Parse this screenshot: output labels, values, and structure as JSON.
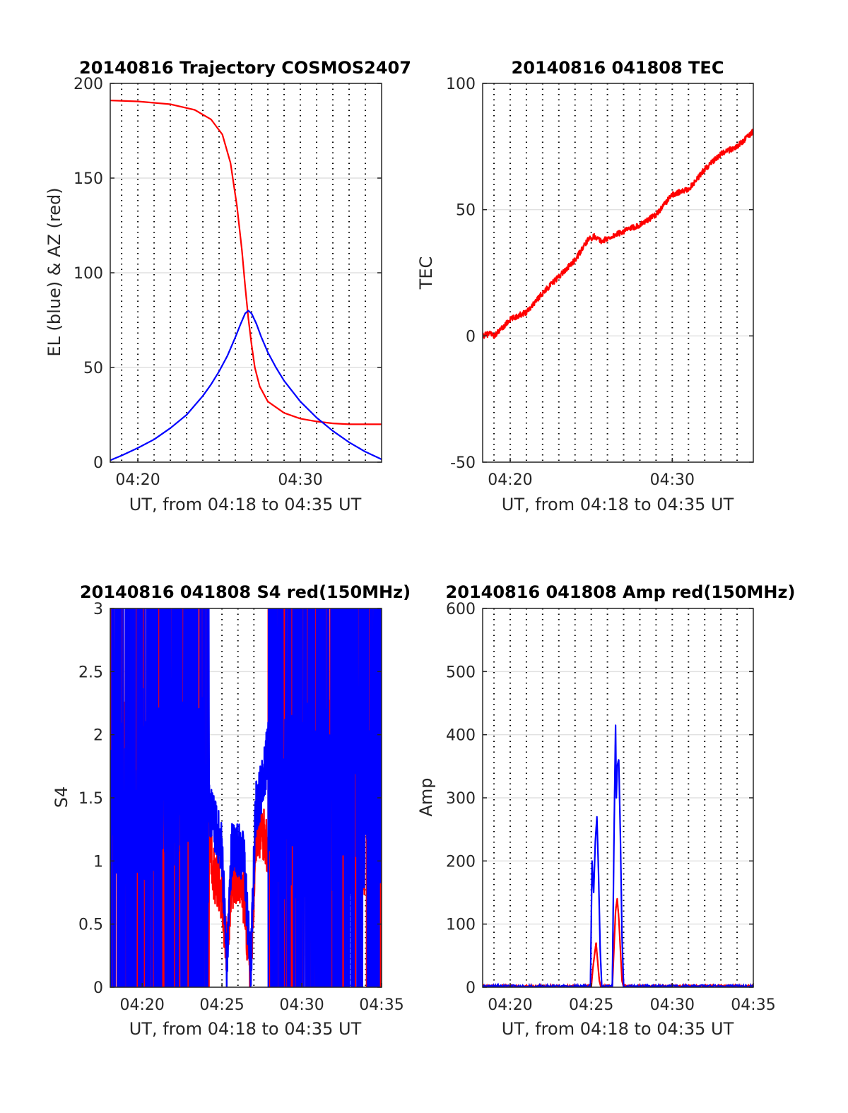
{
  "figure": {
    "background": "#ffffff"
  },
  "colors": {
    "red_series": "#ff0000",
    "blue_series": "#0000ff",
    "grid_major": "#e1e1e1",
    "grid_dotted": "#000000",
    "axes": "#262626"
  },
  "chart_data": [
    {
      "id": "trajectory",
      "type": "line",
      "title": "20140816 Trajectory COSMOS2407",
      "xlabel": "UT, from 04:18 to 04:35 UT",
      "ylabel": "EL (blue) & AZ (red)",
      "x_unit": "minutes after 04:00 UT",
      "xlim": [
        18.3,
        35
      ],
      "ylim": [
        0,
        200
      ],
      "x_ticks": [
        {
          "value": 20,
          "label": "04:20"
        },
        {
          "value": 30,
          "label": "04:30"
        }
      ],
      "y_ticks": [
        0,
        50,
        100,
        150,
        200
      ],
      "grid": "dotted vertical lines every minute, light horizontal lines at y ticks",
      "series": [
        {
          "color": "red",
          "x": [
            18.3,
            20,
            22,
            23.5,
            24.5,
            25.2,
            25.7,
            26.1,
            26.4,
            26.6,
            26.8,
            27.0,
            27.2,
            27.5,
            28,
            29,
            30,
            31,
            32,
            33,
            34,
            35
          ],
          "y": [
            191,
            190.5,
            189,
            186,
            181,
            173,
            158,
            135,
            112,
            93,
            76,
            62,
            50,
            40,
            32,
            26,
            23,
            21.5,
            20.5,
            20,
            20,
            20
          ]
        },
        {
          "color": "blue",
          "x": [
            18.3,
            19,
            20,
            21,
            22,
            23,
            24,
            24.5,
            25,
            25.5,
            26,
            26.3,
            26.6,
            26.8,
            27,
            27.3,
            27.6,
            28,
            28.5,
            29,
            30,
            31,
            32,
            33,
            34,
            35
          ],
          "y": [
            1,
            3.5,
            7.5,
            12,
            18,
            25,
            35,
            41,
            48,
            56,
            66,
            72.5,
            78.5,
            80,
            78.5,
            73,
            66,
            58,
            50,
            43,
            32,
            23.5,
            16.5,
            10.5,
            5.5,
            1.5
          ]
        }
      ]
    },
    {
      "id": "tec",
      "type": "line",
      "title": "20140816 041808 TEC",
      "xlabel": "UT, from 04:18 to 04:35 UT",
      "ylabel": "TEC",
      "x_unit": "minutes after 04:00 UT",
      "xlim": [
        18.3,
        35
      ],
      "ylim": [
        -50,
        100
      ],
      "x_ticks": [
        {
          "value": 20,
          "label": "04:20"
        },
        {
          "value": 30,
          "label": "04:30"
        }
      ],
      "y_ticks": [
        -50,
        0,
        50,
        100
      ],
      "grid": "dotted vertical lines every minute, light horizontal lines at y ticks",
      "series": [
        {
          "color": "red",
          "noisy": true,
          "x": [
            18.3,
            18.8,
            19.0,
            19.5,
            20,
            21,
            22,
            23,
            24,
            24.8,
            25.2,
            25.6,
            26,
            27,
            28,
            29,
            30,
            31,
            32,
            33,
            34,
            35
          ],
          "y": [
            0,
            1,
            0,
            3,
            6.5,
            9.5,
            17,
            23.5,
            30,
            38,
            39.5,
            37.5,
            38.5,
            41.5,
            44,
            48,
            56,
            58,
            66,
            72,
            75,
            81
          ]
        }
      ]
    },
    {
      "id": "s4",
      "type": "line",
      "title": "20140816 041808 S4 red(150MHz)",
      "xlabel": "UT, from 04:18 to 04:35 UT",
      "ylabel": "S4",
      "x_unit": "minutes after 04:00 UT",
      "xlim": [
        18.0,
        35
      ],
      "ylim": [
        0,
        3
      ],
      "x_ticks": [
        {
          "value": 20,
          "label": "04:20"
        },
        {
          "value": 25,
          "label": "04:25"
        },
        {
          "value": 30,
          "label": "04:30"
        },
        {
          "value": 35,
          "label": "04:35"
        }
      ],
      "y_ticks": [
        0,
        0.5,
        1,
        1.5,
        2,
        2.5,
        3
      ],
      "grid": "dotted vertical lines every minute, light horizontal lines at y ticks",
      "series": [
        {
          "color": "red",
          "noisy": true,
          "x": [
            18.0,
            19.0,
            20.0,
            21.0,
            22.0,
            23.0,
            24.0,
            24.5,
            25.0,
            25.3,
            25.6,
            26.0,
            26.4,
            26.8,
            27.1,
            27.5,
            27.9,
            28.3,
            29.0,
            30.0,
            31.0,
            32.0,
            33.0,
            34.0,
            35.0
          ],
          "y": [
            1.5,
            1.5,
            1.5,
            1.5,
            1.5,
            1.4,
            1.3,
            0.9,
            0.75,
            0.25,
            0.8,
            0.9,
            0.7,
            0.1,
            1.2,
            1.25,
            1.1,
            1.5,
            1.5,
            1.5,
            1.5,
            1.5,
            1.5,
            1.5,
            1.5
          ]
        },
        {
          "color": "blue",
          "noisy": true,
          "x": [
            18.0,
            19.0,
            20.0,
            21.0,
            22.0,
            23.0,
            24.0,
            24.5,
            25.0,
            25.3,
            25.6,
            26.0,
            26.4,
            26.8,
            27.1,
            27.5,
            27.9,
            28.3,
            29.0,
            30.0,
            31.0,
            32.0,
            33.0,
            34.0,
            35.0
          ],
          "y": [
            1.7,
            1.6,
            1.6,
            1.7,
            1.6,
            1.6,
            1.5,
            1.3,
            1.1,
            0.15,
            1.1,
            1.1,
            1.0,
            0.1,
            1.4,
            1.6,
            1.9,
            1.5,
            1.5,
            1.5,
            1.5,
            1.5,
            1.5,
            1.5,
            1.5
          ]
        }
      ]
    },
    {
      "id": "amp",
      "type": "line",
      "title": "20140816 041808 Amp red(150MHz)",
      "xlabel": "UT, from 04:18 to 04:35 UT",
      "ylabel": "Amp",
      "x_unit": "minutes after 04:00 UT",
      "xlim": [
        18.3,
        35
      ],
      "ylim": [
        0,
        600
      ],
      "x_ticks": [
        {
          "value": 20,
          "label": "04:20"
        },
        {
          "value": 25,
          "label": "04:25"
        },
        {
          "value": 30,
          "label": "04:30"
        },
        {
          "value": 35,
          "label": "04:35"
        }
      ],
      "y_ticks": [
        0,
        100,
        200,
        300,
        400,
        500,
        600
      ],
      "grid": "dotted vertical lines every minute, light horizontal lines at y ticks",
      "series": [
        {
          "color": "red",
          "x": [
            18.3,
            25.0,
            25.1,
            25.2,
            25.3,
            25.4,
            25.5,
            25.6,
            26.3,
            26.4,
            26.5,
            26.6,
            26.7,
            26.8,
            26.9,
            27.0,
            35.0
          ],
          "y": [
            0,
            0,
            30,
            50,
            70,
            40,
            10,
            0,
            0,
            60,
            120,
            140,
            110,
            60,
            10,
            0,
            0
          ]
        },
        {
          "color": "blue",
          "x": [
            18.3,
            24.95,
            25.05,
            25.15,
            25.25,
            25.35,
            25.45,
            25.55,
            25.65,
            26.3,
            26.4,
            26.5,
            26.55,
            26.6,
            26.7,
            26.8,
            26.9,
            27.0,
            35.0
          ],
          "y": [
            0,
            0,
            200,
            150,
            230,
            270,
            180,
            60,
            0,
            0,
            230,
            415,
            300,
            350,
            360,
            240,
            80,
            0,
            0
          ]
        }
      ]
    }
  ]
}
